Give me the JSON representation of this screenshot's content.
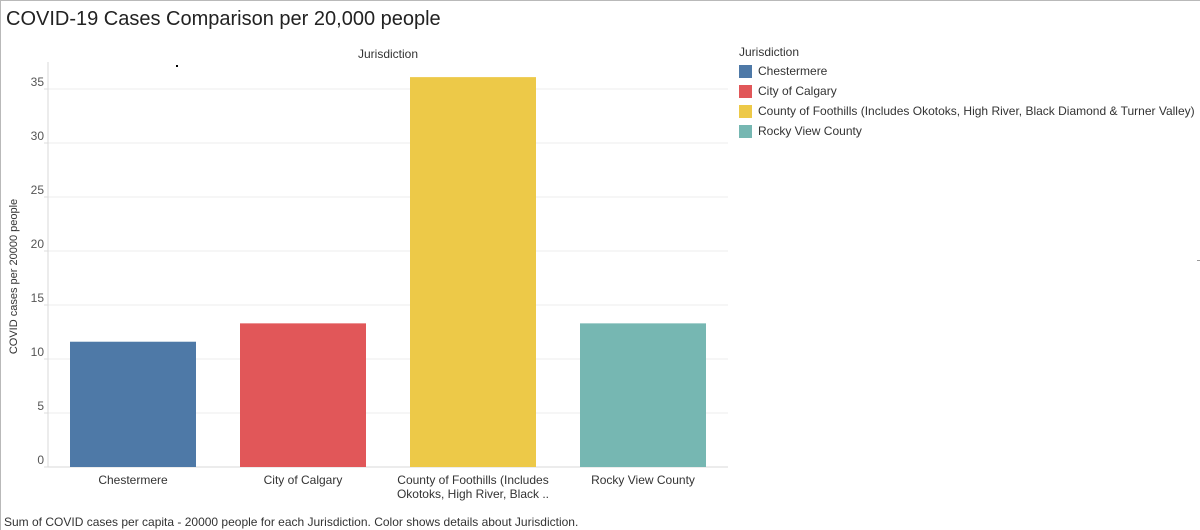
{
  "title": "COVID-19 Cases Comparison per 20,000 people",
  "caption": "Sum of COVID cases per capita - 20000 people for each Jurisdiction. Color shows details about Jurisdiction.",
  "legend": {
    "title": "Jurisdiction",
    "position": "right",
    "items": [
      {
        "label": "Chestermere",
        "color": "#4e79a7"
      },
      {
        "label": "City of Calgary",
        "color": "#e15759"
      },
      {
        "label": "County of Foothills (Includes Okotoks, High River, Black Diamond & Turner Valley)",
        "color": "#edc948"
      },
      {
        "label": "Rocky View County",
        "color": "#76b7b2"
      }
    ]
  },
  "chart_data": {
    "type": "bar",
    "title": "COVID-19 Cases Comparison per 20,000 people",
    "header_label": "Jurisdiction",
    "xlabel": "",
    "ylabel": "COVID cases per 20000 people",
    "categories": [
      "Chestermere",
      "City of Calgary",
      "County of Foothills (Includes Okotoks, High River, Black Diamond & Turner Valley)",
      "Rocky View County"
    ],
    "category_tick_labels": [
      [
        "Chestermere"
      ],
      [
        "City of Calgary"
      ],
      [
        "County of Foothills (Includes",
        "Okotoks, High River, Black .."
      ],
      [
        "Rocky View County"
      ]
    ],
    "values": [
      11.6,
      13.3,
      36.1,
      13.3
    ],
    "colors": [
      "#4e79a7",
      "#e15759",
      "#edc948",
      "#76b7b2"
    ],
    "ylim": [
      0,
      37.5
    ],
    "yticks": [
      0,
      5,
      10,
      15,
      20,
      25,
      30,
      35
    ],
    "grid": true
  }
}
